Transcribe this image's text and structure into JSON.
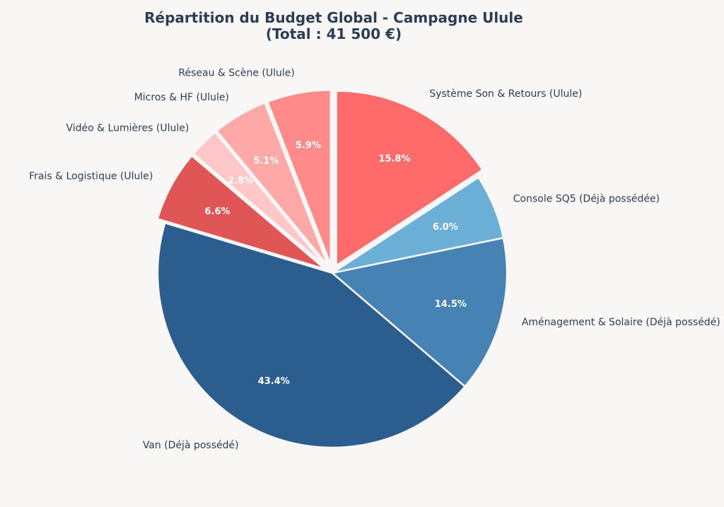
{
  "chart_data": {
    "type": "pie",
    "title": "Répartition du Budget Global - Campagne Ulule",
    "subtitle": "(Total : 41 500 €)",
    "start_angle_deg": 90,
    "direction": "counterclockwise",
    "slices": [
      {
        "label": "Réseau & Scène (Ulule)",
        "percent": 5.9,
        "pct_text": "5.9%",
        "color": "#ff8a8a",
        "exploded": true
      },
      {
        "label": "Micros & HF (Ulule)",
        "percent": 5.1,
        "pct_text": "5.1%",
        "color": "#ffa8a8",
        "exploded": true
      },
      {
        "label": "Vidéo & Lumières (Ulule)",
        "percent": 2.8,
        "pct_text": "2.8%",
        "color": "#ffc7c7",
        "exploded": true
      },
      {
        "label": "Frais & Logistique (Ulule)",
        "percent": 6.6,
        "pct_text": "6.6%",
        "color": "#e05555",
        "exploded": true
      },
      {
        "label": "Van (Déjà possédé)",
        "percent": 43.4,
        "pct_text": "43.4%",
        "color": "#2c5d8f",
        "exploded": false
      },
      {
        "label": "Aménagement & Solaire (Déjà possédé)",
        "percent": 14.5,
        "pct_text": "14.5%",
        "color": "#4682b4",
        "exploded": false
      },
      {
        "label": "Console SQ5 (Déjà possédée)",
        "percent": 6.0,
        "pct_text": "6.0%",
        "color": "#6baed6",
        "exploded": false
      },
      {
        "label": "Système Son & Retours (Ulule)",
        "percent": 15.8,
        "pct_text": "15.8%",
        "color": "#ff6b6b",
        "exploded": true
      }
    ]
  }
}
